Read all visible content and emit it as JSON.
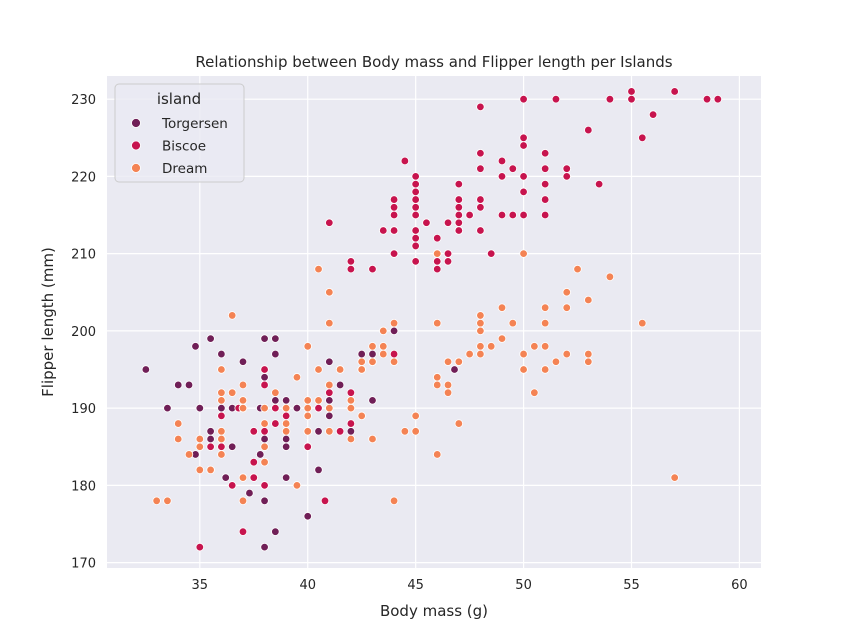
{
  "chart_data": {
    "type": "scatter",
    "title": "Relationship between Body mass and Flipper length per Islands",
    "xlabel": "Body mass (g)",
    "ylabel": "Flipper length (mm)",
    "xlim": [
      30.7,
      61.0
    ],
    "ylim": [
      169.3,
      233.0
    ],
    "xticks": [
      35,
      40,
      45,
      50,
      55,
      60
    ],
    "yticks": [
      170,
      180,
      190,
      200,
      210,
      220,
      230
    ],
    "grid": true,
    "legend": {
      "title": "island",
      "placement": "top-left"
    },
    "series": [
      {
        "name": "Torgersen",
        "color": "#701f57",
        "points": [
          [
            37.5,
            181
          ],
          [
            38.0,
            186
          ],
          [
            32.5,
            195
          ],
          [
            34.5,
            193
          ],
          [
            36.5,
            190
          ],
          [
            36.2,
            181
          ],
          [
            34.8,
            184
          ],
          [
            46.8,
            195
          ],
          [
            35.5,
            186
          ],
          [
            43.0,
            197
          ],
          [
            34.5,
            193
          ],
          [
            37.8,
            190
          ],
          [
            34.0,
            193
          ],
          [
            38.0,
            194
          ],
          [
            37.0,
            196
          ],
          [
            35.5,
            199
          ],
          [
            36.0,
            190
          ],
          [
            39.0,
            181
          ],
          [
            34.8,
            198
          ],
          [
            40.5,
            190
          ],
          [
            41.0,
            191
          ],
          [
            39.0,
            185
          ],
          [
            39.5,
            190
          ],
          [
            38.0,
            195
          ],
          [
            37.5,
            187
          ],
          [
            40.5,
            182
          ],
          [
            38.5,
            197
          ],
          [
            38.0,
            199
          ],
          [
            37.3,
            179
          ],
          [
            40.0,
            189
          ],
          [
            39.0,
            186
          ],
          [
            44.0,
            200
          ],
          [
            35.5,
            182
          ],
          [
            38.5,
            191
          ],
          [
            41.5,
            193
          ],
          [
            38.0,
            178
          ],
          [
            36.0,
            186
          ],
          [
            42.0,
            187
          ],
          [
            35.5,
            187
          ],
          [
            41.0,
            196
          ],
          [
            38.0,
            172
          ],
          [
            36.0,
            197
          ],
          [
            36.5,
            185
          ],
          [
            40.0,
            176
          ],
          [
            38.0,
            183
          ],
          [
            40.5,
            187
          ],
          [
            39.5,
            190
          ],
          [
            43.0,
            191
          ],
          [
            34.0,
            193
          ],
          [
            35.0,
            190
          ],
          [
            36.0,
            186
          ],
          [
            42.5,
            197
          ],
          [
            38.5,
            199
          ],
          [
            41.0,
            189
          ],
          [
            39.0,
            191
          ],
          [
            38.5,
            174
          ],
          [
            37.8,
            184
          ],
          [
            33.5,
            190
          ]
        ]
      },
      {
        "name": "Biscoe",
        "color": "#c7144e",
        "points": [
          [
            37.0,
            174
          ],
          [
            38.0,
            180
          ],
          [
            36.0,
            189
          ],
          [
            40.0,
            185
          ],
          [
            38.0,
            180
          ],
          [
            41.5,
            187
          ],
          [
            37.5,
            183
          ],
          [
            38.0,
            187
          ],
          [
            35.0,
            172
          ],
          [
            36.5,
            180
          ],
          [
            40.8,
            178
          ],
          [
            38.5,
            188
          ],
          [
            42.5,
            195
          ],
          [
            39.0,
            189
          ],
          [
            40.0,
            187
          ],
          [
            43.0,
            196
          ],
          [
            38.5,
            190
          ],
          [
            44.0,
            197
          ],
          [
            36.0,
            185
          ],
          [
            41.5,
            195
          ],
          [
            37.5,
            187
          ],
          [
            42.0,
            192
          ],
          [
            35.5,
            185
          ],
          [
            40.5,
            190
          ],
          [
            38.0,
            193
          ],
          [
            41.0,
            192
          ],
          [
            37.5,
            181
          ],
          [
            40.0,
            185
          ],
          [
            36.8,
            190
          ],
          [
            42.0,
            188
          ],
          [
            38.0,
            195
          ],
          [
            45.5,
            214
          ],
          [
            45.0,
            216
          ],
          [
            47.0,
            213
          ],
          [
            51.0,
            217
          ],
          [
            44.0,
            215
          ],
          [
            55.5,
            225
          ],
          [
            48.0,
            213
          ],
          [
            48.5,
            210
          ],
          [
            46.5,
            209
          ],
          [
            51.5,
            230
          ],
          [
            50.0,
            220
          ],
          [
            47.5,
            215
          ],
          [
            50.0,
            215
          ],
          [
            46.5,
            210
          ],
          [
            47.0,
            219
          ],
          [
            46.0,
            209
          ],
          [
            55.0,
            230
          ],
          [
            44.0,
            215
          ],
          [
            49.5,
            215
          ],
          [
            45.0,
            212
          ],
          [
            51.0,
            215
          ],
          [
            46.0,
            210
          ],
          [
            54.0,
            230
          ],
          [
            44.0,
            216
          ],
          [
            47.0,
            214
          ],
          [
            41.0,
            214
          ],
          [
            48.0,
            216
          ],
          [
            43.5,
            213
          ],
          [
            50.0,
            230
          ],
          [
            45.0,
            217
          ],
          [
            49.0,
            222
          ],
          [
            45.0,
            218
          ],
          [
            53.0,
            226
          ],
          [
            45.0,
            220
          ],
          [
            51.0,
            219
          ],
          [
            44.0,
            216
          ],
          [
            49.5,
            221
          ],
          [
            44.0,
            217
          ],
          [
            50.0,
            220
          ],
          [
            44.0,
            210
          ],
          [
            47.0,
            217
          ],
          [
            45.0,
            215
          ],
          [
            48.0,
            223
          ],
          [
            47.0,
            216
          ],
          [
            55.0,
            231
          ],
          [
            44.0,
            210
          ],
          [
            52.0,
            221
          ],
          [
            45.0,
            213
          ],
          [
            56.0,
            228
          ],
          [
            46.0,
            208
          ],
          [
            58.5,
            230
          ],
          [
            45.0,
            209
          ],
          [
            52.0,
            220
          ],
          [
            47.0,
            217
          ],
          [
            47.0,
            213
          ],
          [
            48.0,
            221
          ],
          [
            45.0,
            216
          ],
          [
            48.0,
            229
          ],
          [
            49.0,
            215
          ],
          [
            46.0,
            212
          ],
          [
            55.0,
            230
          ],
          [
            45.0,
            219
          ],
          [
            50.0,
            224
          ],
          [
            49.0,
            222
          ],
          [
            48.0,
            216
          ],
          [
            43.0,
            208
          ],
          [
            48.0,
            217
          ],
          [
            46.5,
            214
          ],
          [
            53.5,
            219
          ],
          [
            42.0,
            209
          ],
          [
            51.0,
            221
          ],
          [
            44.0,
            213
          ],
          [
            50.0,
            225
          ],
          [
            42.0,
            208
          ],
          [
            57.0,
            231
          ],
          [
            45.0,
            215
          ],
          [
            49.0,
            220
          ],
          [
            44.0,
            213
          ],
          [
            50.0,
            225
          ],
          [
            50.0,
            218
          ],
          [
            56.0,
            228
          ],
          [
            44.5,
            222
          ],
          [
            59.0,
            230
          ],
          [
            45.0,
            211
          ],
          [
            52.0,
            221
          ],
          [
            47.0,
            215
          ],
          [
            51.0,
            223
          ]
        ]
      },
      {
        "name": "Dream",
        "color": "#f48354",
        "points": [
          [
            34.0,
            186
          ],
          [
            36.5,
            192
          ],
          [
            33.0,
            178
          ],
          [
            40.0,
            187
          ],
          [
            37.0,
            191
          ],
          [
            40.0,
            190
          ],
          [
            38.0,
            185
          ],
          [
            36.0,
            192
          ],
          [
            42.0,
            191
          ],
          [
            42.5,
            189
          ],
          [
            38.0,
            188
          ],
          [
            39.0,
            190
          ],
          [
            43.0,
            186
          ],
          [
            35.0,
            185
          ],
          [
            37.0,
            190
          ],
          [
            41.0,
            187
          ],
          [
            36.0,
            184
          ],
          [
            38.5,
            192
          ],
          [
            40.0,
            189
          ],
          [
            40.0,
            191
          ],
          [
            41.0,
            190
          ],
          [
            36.0,
            187
          ],
          [
            41.0,
            193
          ],
          [
            43.5,
            200
          ],
          [
            36.0,
            186
          ],
          [
            42.0,
            190
          ],
          [
            39.0,
            190
          ],
          [
            34.0,
            188
          ],
          [
            36.0,
            191
          ],
          [
            43.5,
            198
          ],
          [
            35.0,
            186
          ],
          [
            39.0,
            188
          ],
          [
            44.0,
            201
          ],
          [
            33.5,
            178
          ],
          [
            39.0,
            187
          ],
          [
            43.0,
            196
          ],
          [
            36.5,
            192
          ],
          [
            42.0,
            186
          ],
          [
            43.0,
            198
          ],
          [
            41.0,
            201
          ],
          [
            35.5,
            182
          ],
          [
            43.5,
            197
          ],
          [
            37.0,
            178
          ],
          [
            41.5,
            195
          ],
          [
            38.0,
            190
          ],
          [
            42.5,
            196
          ],
          [
            39.5,
            194
          ],
          [
            42.5,
            195
          ],
          [
            39.5,
            180
          ],
          [
            40.5,
            195
          ],
          [
            36.0,
            195
          ],
          [
            34.5,
            184
          ],
          [
            37.0,
            181
          ],
          [
            41.0,
            205
          ],
          [
            38.0,
            183
          ],
          [
            40.0,
            198
          ],
          [
            37.0,
            190
          ],
          [
            44.0,
            196
          ],
          [
            37.0,
            193
          ],
          [
            40.5,
            191
          ],
          [
            36.5,
            202
          ],
          [
            40.5,
            208
          ],
          [
            39.0,
            187
          ],
          [
            35.0,
            182
          ],
          [
            46.0,
            201
          ],
          [
            53.0,
            196
          ],
          [
            51.0,
            195
          ],
          [
            50.0,
            197
          ],
          [
            48.0,
            202
          ],
          [
            50.0,
            197
          ],
          [
            46.5,
            196
          ],
          [
            49.0,
            199
          ],
          [
            48.0,
            198
          ],
          [
            50.0,
            195
          ],
          [
            51.0,
            203
          ],
          [
            46.0,
            210
          ],
          [
            46.5,
            193
          ],
          [
            52.0,
            203
          ],
          [
            44.5,
            187
          ],
          [
            48.0,
            201
          ],
          [
            50.5,
            198
          ],
          [
            48.5,
            198
          ],
          [
            49.5,
            201
          ],
          [
            52.0,
            205
          ],
          [
            45.0,
            187
          ],
          [
            51.0,
            201
          ],
          [
            45.0,
            189
          ],
          [
            57.0,
            181
          ],
          [
            43.0,
            196
          ],
          [
            52.0,
            197
          ],
          [
            46.0,
            193
          ],
          [
            48.0,
            197
          ],
          [
            47.0,
            196
          ],
          [
            53.0,
            197
          ],
          [
            47.0,
            188
          ],
          [
            51.0,
            198
          ],
          [
            46.0,
            184
          ],
          [
            50.0,
            210
          ],
          [
            50.5,
            192
          ],
          [
            52.5,
            208
          ],
          [
            44.0,
            178
          ],
          [
            51.5,
            196
          ],
          [
            46.5,
            192
          ],
          [
            53.0,
            204
          ],
          [
            47.0,
            196
          ],
          [
            49.0,
            203
          ],
          [
            46.0,
            194
          ],
          [
            54.0,
            207
          ],
          [
            48.0,
            200
          ],
          [
            50.0,
            195
          ],
          [
            47.5,
            197
          ],
          [
            55.5,
            201
          ]
        ]
      }
    ]
  }
}
